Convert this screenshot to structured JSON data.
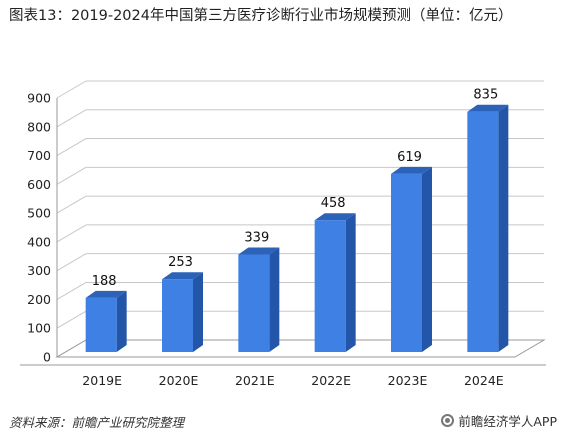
{
  "title": "图表13：2019-2024年中国第三方医疗诊断行业市场规模预测（单位：亿元）",
  "source": "资料来源：前瞻产业研究院整理",
  "brand": "前瞻经济学人APP",
  "colors": {
    "bar_front": "#3f80e4",
    "bar_side": "#2356a8",
    "bar_top": "#2c62b8",
    "grid": "#c8c8c8",
    "axis": "#999999"
  },
  "chart_data": {
    "type": "bar",
    "categories": [
      "2019E",
      "2020E",
      "2021E",
      "2022E",
      "2023E",
      "2024E"
    ],
    "values": [
      188,
      253,
      339,
      458,
      619,
      835
    ],
    "data_labels": [
      "188",
      "253",
      "339",
      "458",
      "619",
      "835"
    ],
    "ylim": [
      0,
      900
    ],
    "yticks": [
      0,
      100,
      200,
      300,
      400,
      500,
      600,
      700,
      800,
      900
    ],
    "grid": true,
    "xlabel": "",
    "ylabel": ""
  }
}
